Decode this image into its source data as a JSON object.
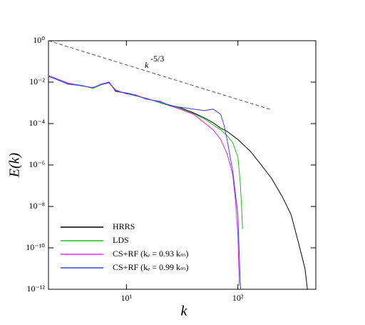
{
  "chart_data": {
    "type": "line",
    "xlabel": "k",
    "ylabel": "E(k)",
    "log_x": true,
    "log_y": true,
    "xlim": [
      2,
      500
    ],
    "ylim": [
      1e-12,
      1
    ],
    "xticks": [
      {
        "value": 10,
        "label": "10¹"
      },
      {
        "value": 100,
        "label": "10²"
      }
    ],
    "yticks": [
      {
        "value": 1,
        "label": "10⁰"
      },
      {
        "value": 0.01,
        "label": "10⁻²"
      },
      {
        "value": 0.0001,
        "label": "10⁻⁴"
      },
      {
        "value": 1e-06,
        "label": "10⁻⁶"
      },
      {
        "value": 1e-08,
        "label": "10⁻⁸"
      },
      {
        "value": 1e-10,
        "label": "10⁻¹⁰"
      },
      {
        "value": 1e-12,
        "label": "10⁻¹²"
      }
    ],
    "legend": "lower left",
    "reference": {
      "text": "k",
      "superscript": "-5/3",
      "color": "#555555",
      "x": [
        2,
        200
      ],
      "values": [
        1,
        0.000464
      ]
    },
    "series": [
      {
        "name": "HRRS",
        "color": "#000000",
        "x": [
          2,
          3,
          4,
          5,
          6,
          7,
          8,
          10,
          12,
          15,
          20,
          25,
          30,
          40,
          50,
          60,
          70,
          80,
          100,
          130,
          160,
          200,
          250,
          300,
          350,
          400,
          420
        ],
        "values": [
          0.02,
          0.008,
          0.0068,
          0.0052,
          0.008,
          0.01,
          0.0036,
          0.003,
          0.0024,
          0.0016,
          0.0011,
          0.00075,
          0.0006,
          0.00033,
          0.00019,
          0.00011,
          6e-05,
          4.2e-05,
          1.7e-05,
          4.5e-06,
          1.1e-06,
          2.3e-07,
          3e-08,
          4e-09,
          1.7e-10,
          1e-11,
          1e-12
        ]
      },
      {
        "name": "LDS",
        "color": "#22bb22",
        "x": [
          2,
          3,
          4,
          5,
          6,
          7,
          8,
          10,
          12,
          15,
          20,
          25,
          30,
          40,
          50,
          60,
          70,
          80,
          90,
          100,
          105,
          108,
          110
        ],
        "values": [
          0.02,
          0.0085,
          0.007,
          0.005,
          0.0075,
          0.0095,
          0.004,
          0.0028,
          0.0022,
          0.0017,
          0.001,
          0.0007,
          0.00055,
          0.0003,
          0.00017,
          8.5e-05,
          5e-05,
          2.6e-05,
          1.2e-05,
          2.4e-06,
          1.4e-07,
          9e-09,
          8e-10
        ]
      },
      {
        "name": "CS+RF (kₑ = 0.93 kₘ)",
        "color": "#ee22ee",
        "x": [
          2,
          3,
          4,
          5,
          6,
          7,
          8,
          10,
          12,
          15,
          20,
          25,
          30,
          40,
          50,
          60,
          70,
          80,
          90,
          95,
          100,
          103
        ],
        "values": [
          0.021,
          0.009,
          0.0065,
          0.0055,
          0.0078,
          0.009,
          0.0042,
          0.0027,
          0.0025,
          0.0015,
          0.0012,
          0.0007,
          0.0005,
          0.00028,
          0.00011,
          5e-05,
          1.7e-05,
          3.5e-06,
          3.3e-07,
          2e-08,
          4e-10,
          1.5e-12
        ]
      },
      {
        "name": "CS+RF (kₑ = 0.99 kₘ)",
        "color": "#3344ee",
        "x": [
          2,
          3,
          4,
          5,
          6,
          7,
          8,
          10,
          12,
          15,
          20,
          25,
          30,
          40,
          50,
          60,
          70,
          75,
          80,
          90,
          100,
          104,
          106
        ],
        "values": [
          0.019,
          0.0082,
          0.0066,
          0.0053,
          0.0082,
          0.0098,
          0.0038,
          0.0029,
          0.0023,
          0.0016,
          0.0011,
          0.00072,
          0.00062,
          0.0005,
          0.00042,
          0.0005,
          0.00028,
          8.5e-05,
          1.7e-05,
          5e-07,
          4e-09,
          7e-12,
          1e-12
        ]
      }
    ]
  }
}
